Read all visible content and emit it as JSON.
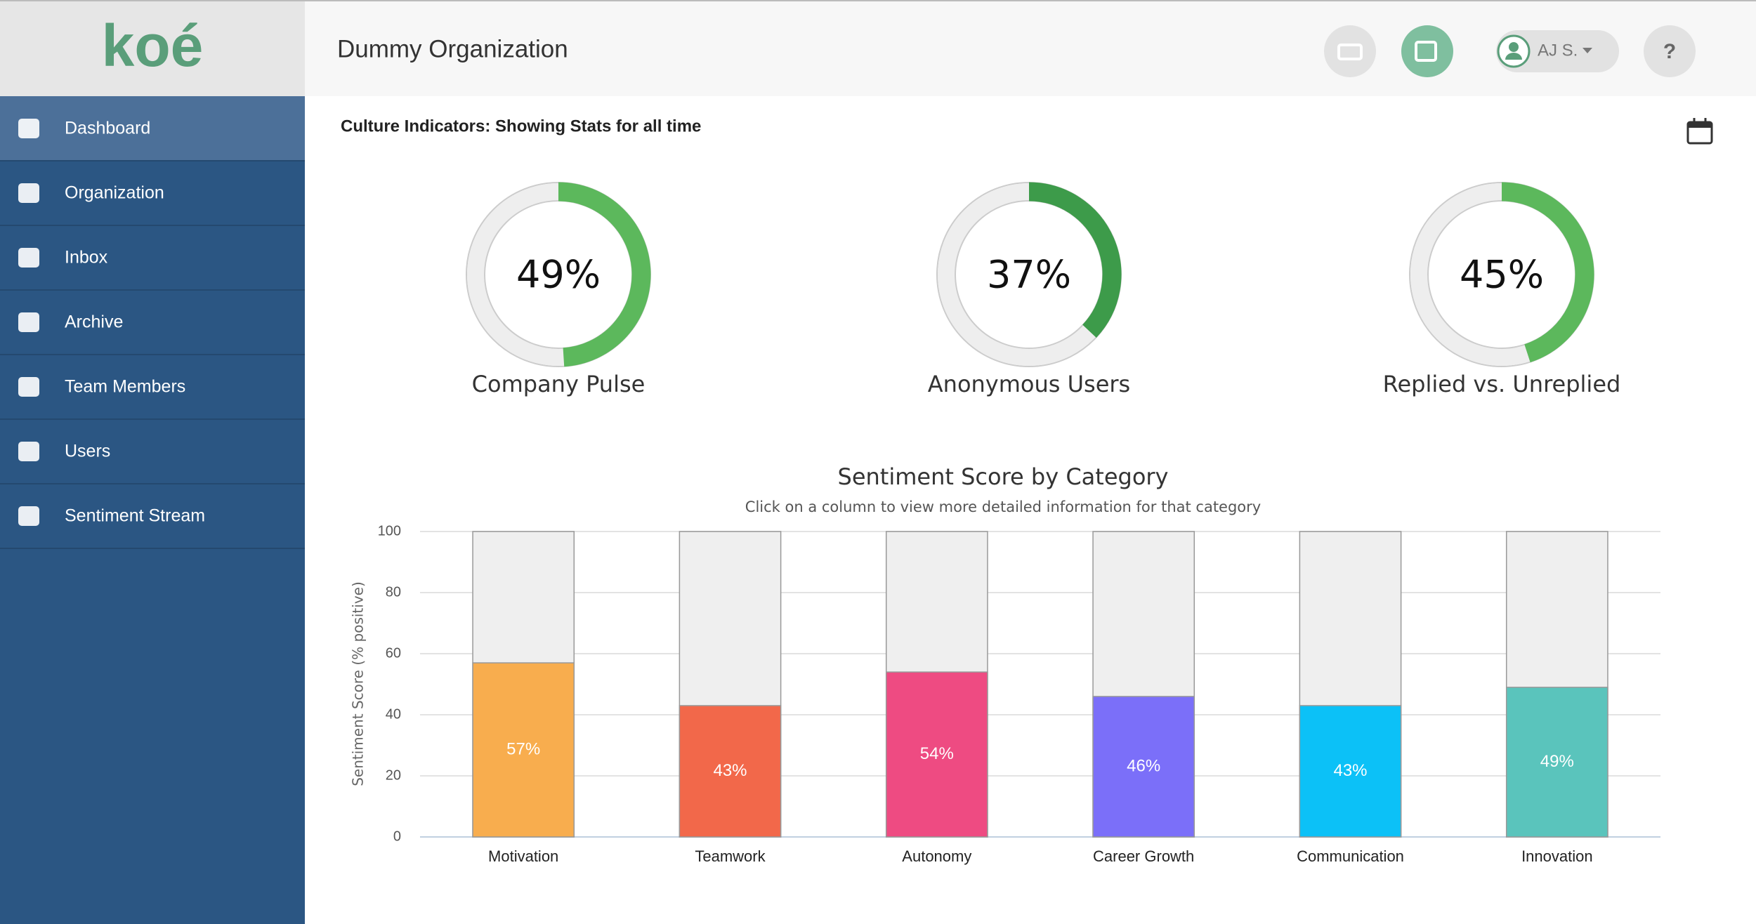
{
  "logo": "koé",
  "nav": [
    "Dashboard",
    "Organization",
    "Inbox",
    "Archive",
    "Team Members",
    "Users",
    "Sentiment Stream"
  ],
  "header": {
    "title": "Dummy Organization",
    "user": "AJ S.",
    "help": "?"
  },
  "section_title": "Culture Indicators: Showing Stats for all time",
  "indicators": [
    {
      "label": "Company Pulse",
      "value": 49,
      "value_label": "49%",
      "color": "#5cb85c"
    },
    {
      "label": "Anonymous Users",
      "value": 37,
      "value_label": "37%",
      "color": "#3d9b4a"
    },
    {
      "label": "Replied vs. Unreplied",
      "value": 45,
      "value_label": "45%",
      "color": "#5cb85c"
    }
  ],
  "chart_data": {
    "type": "bar",
    "title": "Sentiment Score by Category",
    "subtitle": "Click on a column to view more detailed information for that category",
    "y_label": "Sentiment Score (% positive)",
    "categories": [
      "Motivation",
      "Teamwork",
      "Autonomy",
      "Career Growth",
      "Communication",
      "Innovation"
    ],
    "values": [
      57,
      43,
      54,
      46,
      43,
      49
    ],
    "value_labels": [
      "57%",
      "43%",
      "54%",
      "46%",
      "43%",
      "49%"
    ],
    "colors": [
      "#f8ad4e",
      "#f2684a",
      "#ee4b82",
      "#7b6ff9",
      "#0cc1f7",
      "#5ac4bc"
    ],
    "ylim": [
      0,
      100
    ],
    "yticks": [
      0,
      20,
      40,
      60,
      80,
      100
    ],
    "grid": true
  }
}
